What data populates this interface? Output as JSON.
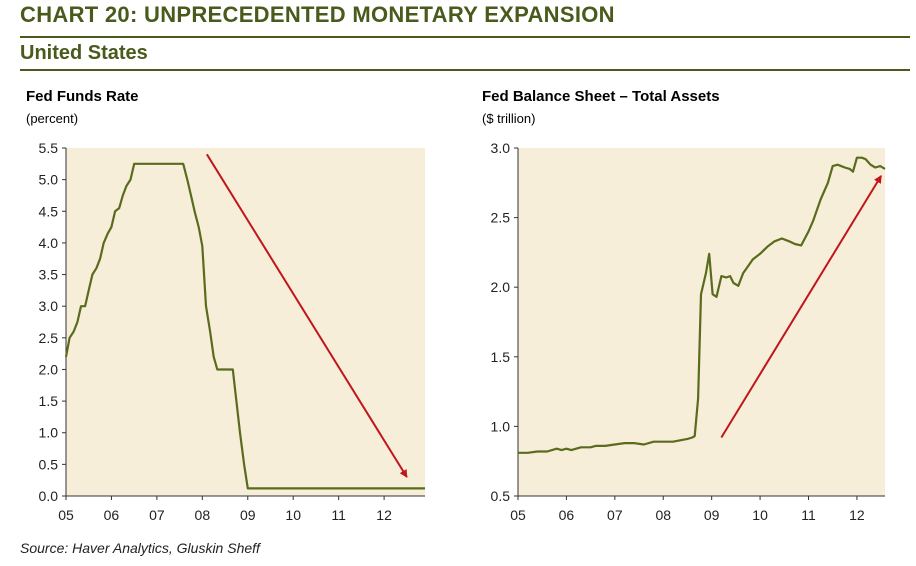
{
  "header": {
    "title": "CHART 20: UNPRECEDENTED MONETARY EXPANSION",
    "region": "United States"
  },
  "source": "Source: Haver Analytics, Gluskin Sheff",
  "colors": {
    "heading": "#4a5a1c",
    "line": "#5a6b1e",
    "arrow": "#c0161b",
    "plot_bg": "#f6eed8"
  },
  "chart_data": [
    {
      "type": "line",
      "title": "Fed Funds Rate",
      "unit": "(percent)",
      "xlim": [
        2005,
        2012.9
      ],
      "ylim": [
        0,
        5.5
      ],
      "x_ticks": [
        {
          "v": 2005,
          "label": "05"
        },
        {
          "v": 2006,
          "label": "06"
        },
        {
          "v": 2007,
          "label": "07"
        },
        {
          "v": 2008,
          "label": "08"
        },
        {
          "v": 2009,
          "label": "09"
        },
        {
          "v": 2010,
          "label": "10"
        },
        {
          "v": 2011,
          "label": "11"
        },
        {
          "v": 2012,
          "label": "12"
        }
      ],
      "y_ticks": [
        {
          "v": 0.0,
          "label": "0.0"
        },
        {
          "v": 0.5,
          "label": "0.5"
        },
        {
          "v": 1.0,
          "label": "1.0"
        },
        {
          "v": 1.5,
          "label": "1.5"
        },
        {
          "v": 2.0,
          "label": "2.0"
        },
        {
          "v": 2.5,
          "label": "2.5"
        },
        {
          "v": 3.0,
          "label": "3.0"
        },
        {
          "v": 3.5,
          "label": "3.5"
        },
        {
          "v": 4.0,
          "label": "4.0"
        },
        {
          "v": 4.5,
          "label": "4.5"
        },
        {
          "v": 5.0,
          "label": "5.0"
        },
        {
          "v": 5.5,
          "label": "5.5"
        }
      ],
      "series": [
        {
          "points": [
            [
              2005.0,
              2.2
            ],
            [
              2005.08,
              2.5
            ],
            [
              2005.17,
              2.6
            ],
            [
              2005.25,
              2.75
            ],
            [
              2005.33,
              3.0
            ],
            [
              2005.42,
              3.0
            ],
            [
              2005.5,
              3.25
            ],
            [
              2005.58,
              3.5
            ],
            [
              2005.67,
              3.6
            ],
            [
              2005.75,
              3.75
            ],
            [
              2005.83,
              4.0
            ],
            [
              2005.92,
              4.15
            ],
            [
              2006.0,
              4.25
            ],
            [
              2006.08,
              4.5
            ],
            [
              2006.17,
              4.55
            ],
            [
              2006.25,
              4.75
            ],
            [
              2006.33,
              4.9
            ],
            [
              2006.42,
              5.0
            ],
            [
              2006.5,
              5.25
            ],
            [
              2006.58,
              5.25
            ],
            [
              2006.67,
              5.25
            ],
            [
              2006.75,
              5.25
            ],
            [
              2006.83,
              5.25
            ],
            [
              2006.92,
              5.25
            ],
            [
              2007.0,
              5.25
            ],
            [
              2007.08,
              5.25
            ],
            [
              2007.17,
              5.25
            ],
            [
              2007.25,
              5.25
            ],
            [
              2007.33,
              5.25
            ],
            [
              2007.42,
              5.25
            ],
            [
              2007.5,
              5.25
            ],
            [
              2007.58,
              5.25
            ],
            [
              2007.67,
              5.0
            ],
            [
              2007.75,
              4.75
            ],
            [
              2007.83,
              4.5
            ],
            [
              2007.92,
              4.25
            ],
            [
              2008.0,
              3.95
            ],
            [
              2008.08,
              3.0
            ],
            [
              2008.17,
              2.6
            ],
            [
              2008.25,
              2.2
            ],
            [
              2008.33,
              2.0
            ],
            [
              2008.42,
              2.0
            ],
            [
              2008.5,
              2.0
            ],
            [
              2008.58,
              2.0
            ],
            [
              2008.67,
              2.0
            ],
            [
              2008.75,
              1.5
            ],
            [
              2008.83,
              1.0
            ],
            [
              2008.92,
              0.5
            ],
            [
              2009.0,
              0.12
            ],
            [
              2009.5,
              0.12
            ],
            [
              2010.0,
              0.12
            ],
            [
              2010.5,
              0.12
            ],
            [
              2011.0,
              0.12
            ],
            [
              2011.5,
              0.12
            ],
            [
              2012.0,
              0.12
            ],
            [
              2012.5,
              0.12
            ],
            [
              2012.9,
              0.12
            ]
          ]
        }
      ],
      "annotation_arrow": {
        "from": [
          2008.1,
          5.4
        ],
        "to": [
          2012.5,
          0.3
        ]
      }
    },
    {
      "type": "line",
      "title": "Fed Balance Sheet – Total Assets",
      "unit": "($ trillion)",
      "xlim": [
        2005,
        2012.58
      ],
      "ylim": [
        0.5,
        3.0
      ],
      "x_ticks": [
        {
          "v": 2005,
          "label": "05"
        },
        {
          "v": 2006,
          "label": "06"
        },
        {
          "v": 2007,
          "label": "07"
        },
        {
          "v": 2008,
          "label": "08"
        },
        {
          "v": 2009,
          "label": "09"
        },
        {
          "v": 2010,
          "label": "10"
        },
        {
          "v": 2011,
          "label": "11"
        },
        {
          "v": 2012,
          "label": "12"
        }
      ],
      "y_ticks": [
        {
          "v": 0.5,
          "label": "0.5"
        },
        {
          "v": 1.0,
          "label": "1.0"
        },
        {
          "v": 1.5,
          "label": "1.5"
        },
        {
          "v": 2.0,
          "label": "2.0"
        },
        {
          "v": 2.5,
          "label": "2.5"
        },
        {
          "v": 3.0,
          "label": "3.0"
        }
      ],
      "series": [
        {
          "points": [
            [
              2005.0,
              0.81
            ],
            [
              2005.2,
              0.81
            ],
            [
              2005.4,
              0.82
            ],
            [
              2005.6,
              0.82
            ],
            [
              2005.8,
              0.84
            ],
            [
              2005.9,
              0.83
            ],
            [
              2006.0,
              0.84
            ],
            [
              2006.1,
              0.83
            ],
            [
              2006.3,
              0.85
            ],
            [
              2006.5,
              0.85
            ],
            [
              2006.6,
              0.86
            ],
            [
              2006.8,
              0.86
            ],
            [
              2007.0,
              0.87
            ],
            [
              2007.2,
              0.88
            ],
            [
              2007.4,
              0.88
            ],
            [
              2007.6,
              0.87
            ],
            [
              2007.8,
              0.89
            ],
            [
              2008.0,
              0.89
            ],
            [
              2008.2,
              0.89
            ],
            [
              2008.35,
              0.9
            ],
            [
              2008.5,
              0.91
            ],
            [
              2008.6,
              0.92
            ],
            [
              2008.65,
              0.93
            ],
            [
              2008.72,
              1.2
            ],
            [
              2008.78,
              1.95
            ],
            [
              2008.88,
              2.1
            ],
            [
              2008.95,
              2.24
            ],
            [
              2009.02,
              1.95
            ],
            [
              2009.1,
              1.93
            ],
            [
              2009.2,
              2.08
            ],
            [
              2009.3,
              2.07
            ],
            [
              2009.38,
              2.08
            ],
            [
              2009.45,
              2.03
            ],
            [
              2009.55,
              2.01
            ],
            [
              2009.65,
              2.1
            ],
            [
              2009.75,
              2.15
            ],
            [
              2009.85,
              2.2
            ],
            [
              2010.0,
              2.24
            ],
            [
              2010.15,
              2.29
            ],
            [
              2010.3,
              2.33
            ],
            [
              2010.45,
              2.35
            ],
            [
              2010.6,
              2.33
            ],
            [
              2010.72,
              2.31
            ],
            [
              2010.85,
              2.3
            ],
            [
              2011.0,
              2.4
            ],
            [
              2011.1,
              2.48
            ],
            [
              2011.25,
              2.63
            ],
            [
              2011.4,
              2.75
            ],
            [
              2011.5,
              2.87
            ],
            [
              2011.6,
              2.88
            ],
            [
              2011.75,
              2.86
            ],
            [
              2011.85,
              2.85
            ],
            [
              2011.92,
              2.83
            ],
            [
              2012.0,
              2.93
            ],
            [
              2012.1,
              2.93
            ],
            [
              2012.18,
              2.92
            ],
            [
              2012.28,
              2.88
            ],
            [
              2012.38,
              2.86
            ],
            [
              2012.48,
              2.87
            ],
            [
              2012.58,
              2.85
            ]
          ]
        }
      ],
      "annotation_arrow": {
        "from": [
          2009.2,
          0.92
        ],
        "to": [
          2012.5,
          2.8
        ]
      }
    }
  ]
}
